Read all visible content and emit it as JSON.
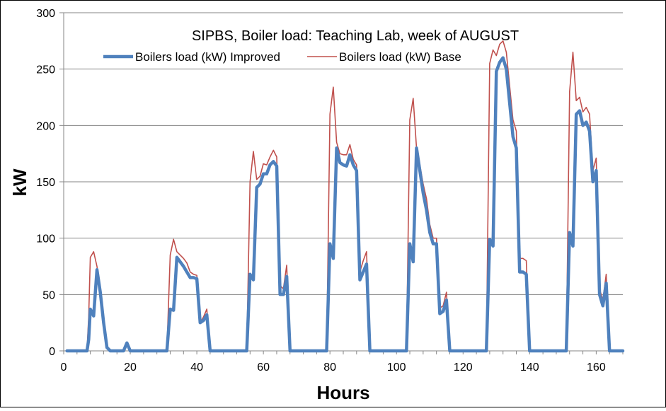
{
  "chart_data": {
    "type": "line",
    "title": "SIPBS, Boiler load: Teaching Lab, week of AUGUST",
    "xlabel": "Hours",
    "ylabel": "kW",
    "xlim": [
      0,
      168
    ],
    "ylim": [
      0,
      300
    ],
    "x_ticks": [
      0,
      20,
      40,
      60,
      80,
      100,
      120,
      140,
      160
    ],
    "y_ticks": [
      0,
      50,
      100,
      150,
      200,
      250,
      300
    ],
    "grid": "horizontal",
    "legend_position": "top",
    "series": [
      {
        "name": "Boilers load (kW) Improved",
        "color": "#4f81bd",
        "points": [
          [
            1,
            0
          ],
          [
            7,
            0
          ],
          [
            7.5,
            10
          ],
          [
            8,
            37
          ],
          [
            9,
            31
          ],
          [
            10,
            72
          ],
          [
            11,
            52
          ],
          [
            12,
            25
          ],
          [
            13,
            3
          ],
          [
            14,
            0
          ],
          [
            18,
            0
          ],
          [
            19,
            7
          ],
          [
            20,
            0
          ],
          [
            31,
            0
          ],
          [
            32,
            37
          ],
          [
            33,
            36
          ],
          [
            34,
            83
          ],
          [
            35,
            79
          ],
          [
            36,
            75
          ],
          [
            37,
            70
          ],
          [
            38,
            65
          ],
          [
            39,
            65
          ],
          [
            40,
            64
          ],
          [
            41,
            25
          ],
          [
            42,
            27
          ],
          [
            43,
            32
          ],
          [
            44,
            0
          ],
          [
            55,
            0
          ],
          [
            56,
            68
          ],
          [
            57,
            63
          ],
          [
            58,
            145
          ],
          [
            59,
            148
          ],
          [
            60,
            157
          ],
          [
            61,
            157
          ],
          [
            62,
            165
          ],
          [
            63,
            168
          ],
          [
            64,
            164
          ],
          [
            65,
            50
          ],
          [
            66,
            50
          ],
          [
            67,
            66
          ],
          [
            68,
            0
          ],
          [
            79,
            0
          ],
          [
            80,
            95
          ],
          [
            81,
            82
          ],
          [
            82,
            180
          ],
          [
            83,
            167
          ],
          [
            84,
            165
          ],
          [
            85,
            164
          ],
          [
            86,
            174
          ],
          [
            87,
            165
          ],
          [
            88,
            160
          ],
          [
            89,
            63
          ],
          [
            90,
            70
          ],
          [
            91,
            77
          ],
          [
            92,
            0
          ],
          [
            103,
            0
          ],
          [
            104,
            95
          ],
          [
            105,
            79
          ],
          [
            106,
            180
          ],
          [
            107,
            160
          ],
          [
            108,
            140
          ],
          [
            109,
            125
          ],
          [
            110,
            105
          ],
          [
            111,
            95
          ],
          [
            112,
            95
          ],
          [
            113,
            33
          ],
          [
            114,
            35
          ],
          [
            115,
            45
          ],
          [
            116,
            0
          ],
          [
            127,
            0
          ],
          [
            128,
            99
          ],
          [
            129,
            93
          ],
          [
            130,
            248
          ],
          [
            131,
            256
          ],
          [
            132,
            260
          ],
          [
            133,
            250
          ],
          [
            134,
            220
          ],
          [
            135,
            190
          ],
          [
            136,
            180
          ],
          [
            137,
            70
          ],
          [
            138,
            70
          ],
          [
            139,
            68
          ],
          [
            140,
            0
          ],
          [
            151,
            0
          ],
          [
            152,
            105
          ],
          [
            153,
            93
          ],
          [
            154,
            210
          ],
          [
            155,
            213
          ],
          [
            156,
            200
          ],
          [
            157,
            203
          ],
          [
            158,
            195
          ],
          [
            159,
            150
          ],
          [
            160,
            160
          ],
          [
            161,
            50
          ],
          [
            162,
            40
          ],
          [
            163,
            60
          ],
          [
            164,
            0
          ],
          [
            168,
            0
          ]
        ]
      },
      {
        "name": "Boilers load (kW) Base",
        "color": "#c0504d",
        "points": [
          [
            1,
            0
          ],
          [
            7,
            0
          ],
          [
            7.5,
            30
          ],
          [
            8,
            83
          ],
          [
            9,
            88
          ],
          [
            10,
            75
          ],
          [
            11,
            55
          ],
          [
            12,
            28
          ],
          [
            13,
            4
          ],
          [
            14,
            0
          ],
          [
            18,
            0
          ],
          [
            19,
            8
          ],
          [
            20,
            0
          ],
          [
            31,
            0
          ],
          [
            32,
            85
          ],
          [
            33,
            99
          ],
          [
            34,
            88
          ],
          [
            35,
            85
          ],
          [
            36,
            82
          ],
          [
            37,
            78
          ],
          [
            38,
            70
          ],
          [
            39,
            68
          ],
          [
            40,
            67
          ],
          [
            41,
            25
          ],
          [
            42,
            30
          ],
          [
            43,
            37
          ],
          [
            44,
            0
          ],
          [
            55,
            0
          ],
          [
            56,
            150
          ],
          [
            57,
            177
          ],
          [
            58,
            152
          ],
          [
            59,
            155
          ],
          [
            60,
            166
          ],
          [
            61,
            165
          ],
          [
            62,
            172
          ],
          [
            63,
            178
          ],
          [
            64,
            172
          ],
          [
            65,
            58
          ],
          [
            66,
            55
          ],
          [
            67,
            76
          ],
          [
            68,
            0
          ],
          [
            79,
            0
          ],
          [
            80,
            210
          ],
          [
            81,
            234
          ],
          [
            82,
            185
          ],
          [
            83,
            175
          ],
          [
            84,
            174
          ],
          [
            85,
            174
          ],
          [
            86,
            183
          ],
          [
            87,
            170
          ],
          [
            88,
            165
          ],
          [
            89,
            70
          ],
          [
            90,
            80
          ],
          [
            91,
            88
          ],
          [
            92,
            0
          ],
          [
            103,
            0
          ],
          [
            104,
            205
          ],
          [
            105,
            224
          ],
          [
            106,
            180
          ],
          [
            107,
            165
          ],
          [
            108,
            148
          ],
          [
            109,
            135
          ],
          [
            110,
            112
          ],
          [
            111,
            100
          ],
          [
            112,
            100
          ],
          [
            113,
            38
          ],
          [
            114,
            40
          ],
          [
            115,
            52
          ],
          [
            116,
            0
          ],
          [
            127,
            0
          ],
          [
            128,
            255
          ],
          [
            129,
            267
          ],
          [
            130,
            262
          ],
          [
            131,
            272
          ],
          [
            132,
            275
          ],
          [
            133,
            265
          ],
          [
            134,
            235
          ],
          [
            135,
            205
          ],
          [
            136,
            195
          ],
          [
            137,
            82
          ],
          [
            138,
            82
          ],
          [
            139,
            80
          ],
          [
            140,
            0
          ],
          [
            151,
            0
          ],
          [
            152,
            230
          ],
          [
            153,
            265
          ],
          [
            154,
            222
          ],
          [
            155,
            225
          ],
          [
            156,
            212
          ],
          [
            157,
            216
          ],
          [
            158,
            210
          ],
          [
            159,
            160
          ],
          [
            160,
            171
          ],
          [
            161,
            55
          ],
          [
            162,
            45
          ],
          [
            163,
            68
          ],
          [
            164,
            0
          ],
          [
            168,
            0
          ]
        ]
      }
    ]
  }
}
